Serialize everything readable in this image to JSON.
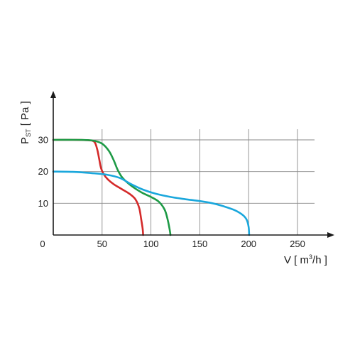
{
  "chart_data": {
    "type": "line",
    "xlim": [
      0,
      250
    ],
    "ylim": [
      0,
      30
    ],
    "x_ticks": [
      "0",
      "50",
      "100",
      "150",
      "200",
      "250"
    ],
    "y_ticks": [
      "10",
      "20",
      "30"
    ],
    "grid": true,
    "xlabel": {
      "main": "V [ m",
      "sup": "3",
      "tail": "/h ]"
    },
    "ylabel": {
      "main": "P",
      "sub": "ST",
      "tail": " [ Pa ]"
    },
    "series": [
      {
        "color": "#d42a2a",
        "points": [
          [
            0,
            30
          ],
          [
            20,
            30
          ],
          [
            35,
            29.9
          ],
          [
            42,
            29.4
          ],
          [
            45,
            27
          ],
          [
            47,
            24
          ],
          [
            49,
            21
          ],
          [
            52,
            19
          ],
          [
            56,
            17.5
          ],
          [
            62,
            16
          ],
          [
            70,
            14.5
          ],
          [
            78,
            13
          ],
          [
            84,
            11.3
          ],
          [
            88,
            8.5
          ],
          [
            90,
            5
          ],
          [
            91.5,
            2
          ],
          [
            92,
            0
          ]
        ]
      },
      {
        "color": "#1e9a46",
        "points": [
          [
            0,
            30
          ],
          [
            25,
            30
          ],
          [
            40,
            29.8
          ],
          [
            50,
            28.8
          ],
          [
            57,
            26.5
          ],
          [
            62,
            23.5
          ],
          [
            66,
            20.5
          ],
          [
            71,
            18
          ],
          [
            80,
            15.5
          ],
          [
            90,
            13.5
          ],
          [
            100,
            12
          ],
          [
            108,
            10.5
          ],
          [
            114,
            8
          ],
          [
            117,
            5
          ],
          [
            119,
            2
          ],
          [
            120,
            0
          ]
        ]
      },
      {
        "color": "#1aa7dc",
        "points": [
          [
            0,
            20
          ],
          [
            20,
            19.9
          ],
          [
            40,
            19.5
          ],
          [
            55,
            19
          ],
          [
            68,
            18
          ],
          [
            80,
            16
          ],
          [
            92,
            14.3
          ],
          [
            105,
            13
          ],
          [
            120,
            12
          ],
          [
            135,
            11.3
          ],
          [
            150,
            10.7
          ],
          [
            163,
            10
          ],
          [
            175,
            9
          ],
          [
            186,
            7.8
          ],
          [
            194,
            6.3
          ],
          [
            198,
            4.8
          ],
          [
            200,
            2.5
          ],
          [
            200.5,
            0
          ]
        ]
      }
    ]
  }
}
